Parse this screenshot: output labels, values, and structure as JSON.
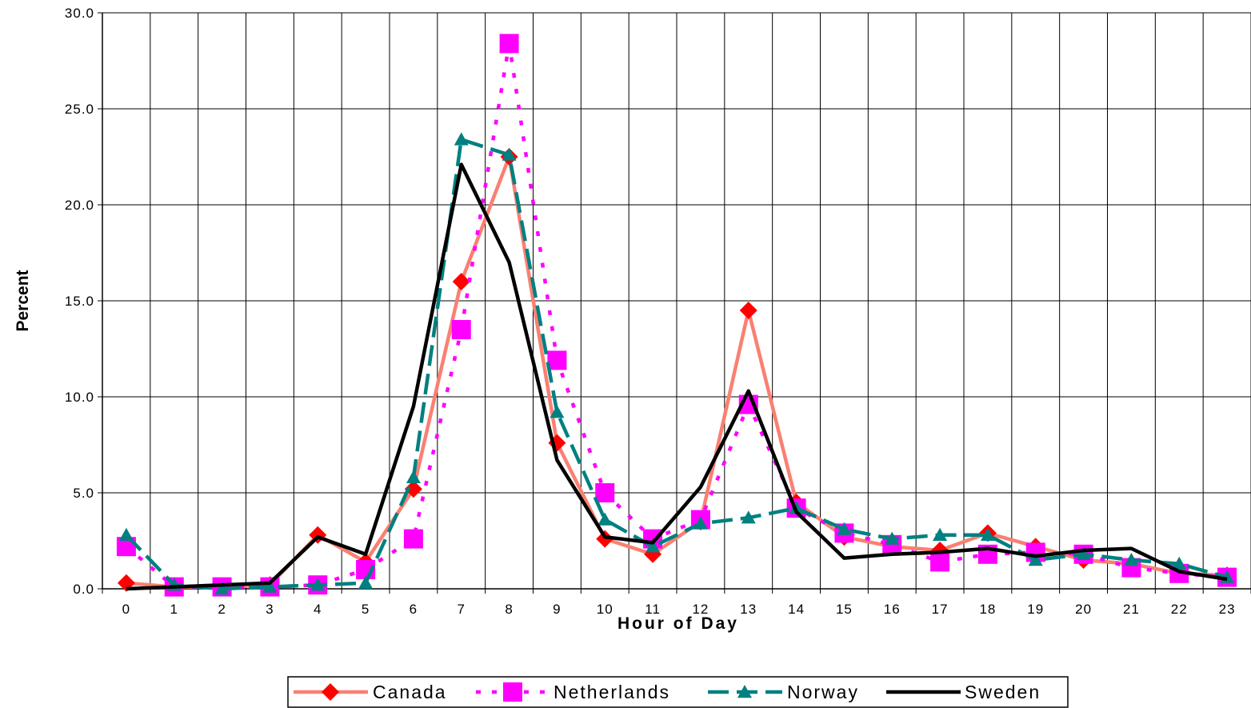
{
  "chart_data": {
    "type": "line",
    "title": "",
    "xlabel": "Hour of Day",
    "ylabel": "Percent",
    "x": [
      "0",
      "1",
      "2",
      "3",
      "4",
      "5",
      "6",
      "7",
      "8",
      "9",
      "10",
      "11",
      "12",
      "13",
      "14",
      "15",
      "16",
      "17",
      "18",
      "19",
      "20",
      "21",
      "22",
      "23"
    ],
    "ylim": [
      0,
      30
    ],
    "yticks": [
      "0.0",
      "5.0",
      "10.0",
      "15.0",
      "20.0",
      "25.0",
      "30.0"
    ],
    "grid": true,
    "legend_position": "bottom",
    "series": [
      {
        "name": "Canada",
        "color": "#fa8072",
        "marker": "diamond",
        "marker_color": "#ff0000",
        "dash": "solid",
        "values": [
          0.3,
          0.1,
          0.1,
          0.2,
          2.8,
          1.4,
          5.2,
          16.0,
          22.5,
          7.6,
          2.6,
          1.8,
          3.5,
          14.5,
          4.5,
          2.7,
          2.2,
          2.0,
          2.9,
          2.2,
          1.5,
          1.3,
          0.8,
          0.7
        ]
      },
      {
        "name": "Netherlands",
        "color": "#ff00ff",
        "marker": "square",
        "marker_color": "#ff00ff",
        "dash": "dotted",
        "values": [
          2.2,
          0.1,
          0.1,
          0.1,
          0.2,
          1.0,
          2.6,
          13.5,
          28.4,
          11.9,
          5.0,
          2.6,
          3.6,
          9.6,
          4.2,
          2.9,
          2.3,
          1.4,
          1.8,
          1.9,
          1.8,
          1.1,
          0.8,
          0.6
        ]
      },
      {
        "name": "Norway",
        "color": "#008080",
        "marker": "triangle",
        "marker_color": "#008080",
        "dash": "dashed",
        "values": [
          2.8,
          0.2,
          0.0,
          0.1,
          0.2,
          0.3,
          5.8,
          23.4,
          22.6,
          9.2,
          3.6,
          2.2,
          3.4,
          3.7,
          4.2,
          3.1,
          2.6,
          2.8,
          2.8,
          1.5,
          1.8,
          1.5,
          1.3,
          0.6
        ]
      },
      {
        "name": "Sweden",
        "color": "#000000",
        "marker": "none",
        "marker_color": "#000000",
        "dash": "solid",
        "values": [
          0.0,
          0.1,
          0.2,
          0.3,
          2.7,
          1.8,
          9.5,
          22.1,
          17.0,
          6.7,
          2.7,
          2.4,
          5.3,
          10.3,
          4.0,
          1.6,
          1.8,
          1.9,
          2.1,
          1.7,
          2.0,
          2.1,
          0.9,
          0.5
        ]
      }
    ]
  }
}
